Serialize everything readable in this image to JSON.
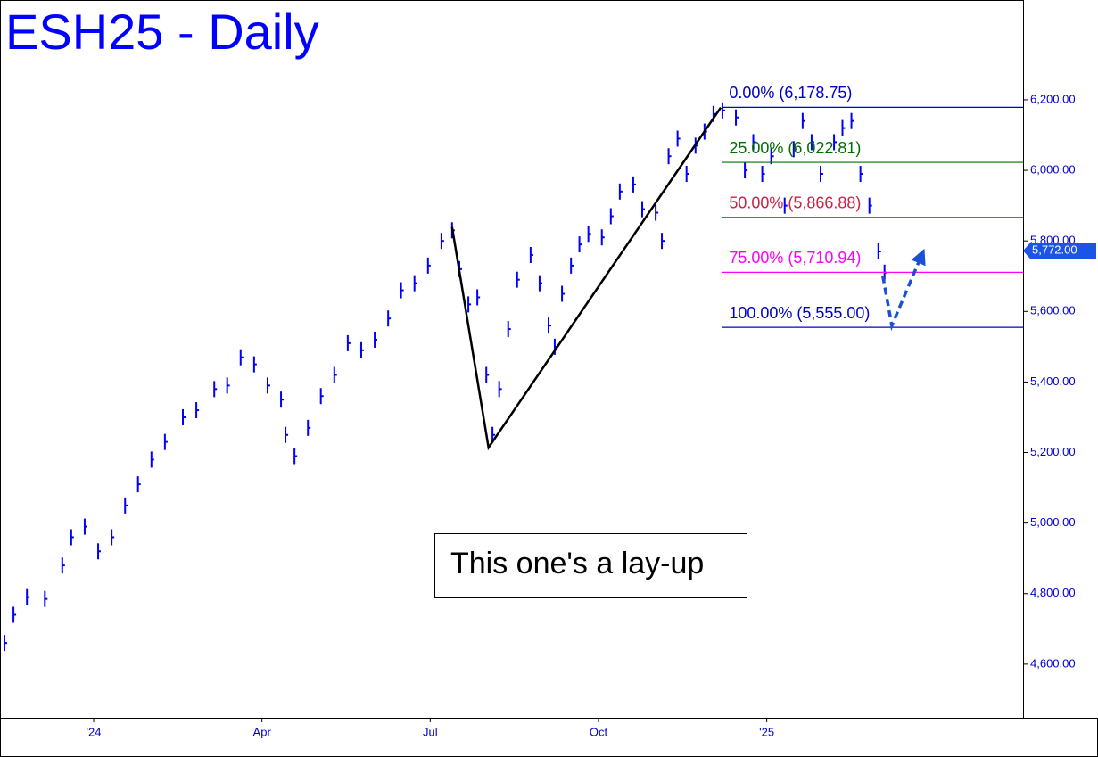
{
  "chart_data": {
    "type": "bar-ticks",
    "title": "ESH25 - Daily",
    "annotation": "This one's a lay-up",
    "color": "#0000ff",
    "xlim": [
      -1.67,
      16.57
    ],
    "xticks": [
      {
        "value": 0,
        "label": "'24"
      },
      {
        "value": 3,
        "label": "Apr"
      },
      {
        "value": 6,
        "label": "Jul"
      },
      {
        "value": 9,
        "label": "Oct"
      },
      {
        "value": 12,
        "label": "'25"
      }
    ],
    "ylim": [
      4448,
      6483
    ],
    "yticks": [
      {
        "value": 4600,
        "label": "4,600.00"
      },
      {
        "value": 4800,
        "label": "4,800.00"
      },
      {
        "value": 5000,
        "label": "5,000.00"
      },
      {
        "value": 5200,
        "label": "5,200.00"
      },
      {
        "value": 5400,
        "label": "5,400.00"
      },
      {
        "value": 5600,
        "label": "5,600.00"
      },
      {
        "value": 5800,
        "label": "5,800.00"
      },
      {
        "value": 6000,
        "label": "6,000.00"
      },
      {
        "value": 6200,
        "label": "6,200.00"
      }
    ],
    "x": [
      -1.59,
      -1.43,
      -1.19,
      -0.87,
      -0.56,
      -0.4,
      -0.16,
      0.08,
      0.32,
      0.56,
      0.79,
      1.03,
      1.27,
      1.59,
      1.83,
      2.15,
      2.38,
      2.62,
      2.86,
      3.1,
      3.34,
      3.42,
      3.58,
      3.82,
      4.05,
      4.29,
      4.53,
      4.77,
      5.01,
      5.25,
      5.48,
      5.72,
      5.96,
      6.2,
      6.39,
      6.52,
      6.68,
      6.84,
      7.0,
      7.11,
      7.23,
      7.39,
      7.55,
      7.79,
      7.95,
      8.11,
      8.22,
      8.35,
      8.51,
      8.66,
      8.82,
      9.06,
      9.22,
      9.38,
      9.62,
      9.78,
      10.02,
      10.13,
      10.25,
      10.41,
      10.57,
      10.73,
      10.89,
      11.05,
      11.21,
      11.45,
      11.61,
      11.76,
      11.92,
      12.08,
      12.32,
      12.48,
      12.64,
      12.8,
      12.96,
      13.2,
      13.35,
      13.51,
      13.67,
      13.83,
      13.99,
      14.1
    ],
    "values": [
      4660,
      4740,
      4790,
      4785,
      4880,
      4960,
      4990,
      4920,
      4960,
      5050,
      5110,
      5180,
      5230,
      5300,
      5320,
      5380,
      5390,
      5470,
      5450,
      5390,
      5350,
      5250,
      5190,
      5270,
      5360,
      5420,
      5510,
      5490,
      5520,
      5580,
      5660,
      5680,
      5730,
      5800,
      5830,
      5720,
      5620,
      5640,
      5420,
      5250,
      5380,
      5550,
      5690,
      5760,
      5680,
      5560,
      5500,
      5650,
      5730,
      5790,
      5820,
      5810,
      5870,
      5940,
      5960,
      5890,
      5880,
      5800,
      6040,
      6090,
      5990,
      6070,
      6110,
      6160,
      6170,
      6150,
      6000,
      6080,
      5990,
      6040,
      5900,
      6060,
      6140,
      6080,
      5990,
      6080,
      6120,
      6140,
      5990,
      5900,
      5770,
      5710
    ],
    "fib_start": 11.2,
    "fib_levels": [
      {
        "label": "0.00% (6,178.75)",
        "value": 6178.75,
        "color": "#0000cc"
      },
      {
        "label": "25.00% (6,022.81)",
        "value": 6022.81,
        "color": "#007000"
      },
      {
        "label": "50.00% (5,866.88)",
        "value": 5866.88,
        "color": "#cc2244"
      },
      {
        "label": "75.00% (5,710.94)",
        "value": 5710.94,
        "color": "#ff00ff"
      },
      {
        "label": "100.00% (5,555.00)",
        "value": 5555,
        "color": "#0000cc"
      }
    ],
    "pattern": {
      "x": [
        6.39,
        7.04,
        11.18
      ],
      "values": [
        5839,
        5214,
        6178
      ],
      "color": "#000000"
    },
    "projection": {
      "x": [
        14.07,
        14.23,
        14.79
      ],
      "values": [
        5700,
        5560,
        5770
      ],
      "color": "#1a4fd8"
    },
    "last_price": {
      "value": 5772,
      "label": "5,772.00"
    }
  }
}
